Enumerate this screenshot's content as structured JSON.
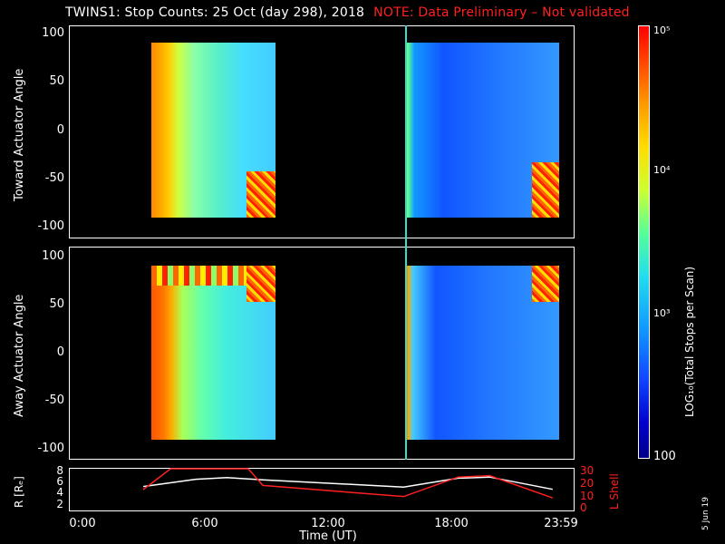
{
  "title": {
    "main": "TWINS1: Stop Counts: 25 Oct (day 298), 2018",
    "note": "NOTE: Data Preliminary – Not validated"
  },
  "panels": {
    "top": {
      "ylabel": "Toward Actuator Angle",
      "yticks": [
        "100",
        "50",
        "0",
        "-50",
        "-100"
      ]
    },
    "middle": {
      "ylabel": "Away Actuator Angle",
      "yticks": [
        "100",
        "50",
        "0",
        "-50",
        "-100"
      ]
    },
    "bottom": {
      "ylabel_left": "R [Rₑ]",
      "ylabel_right": "L Shell",
      "yticks_left": [
        "8",
        "6",
        "4",
        "2"
      ],
      "yticks_right": [
        "30",
        "20",
        "10",
        "0"
      ]
    }
  },
  "xaxis": {
    "label": "Time (UT)",
    "ticks": [
      "0:00",
      "6:00",
      "12:00",
      "18:00",
      "23:59"
    ]
  },
  "colorbar": {
    "title": "LOG₁₀(Total Stops per Scan)",
    "labels": [
      "10⁵",
      "10⁴",
      "10³",
      "100"
    ]
  },
  "date_stamp": "5 Jun 19",
  "colors": {
    "note": "#ff2020",
    "L_shell": "#ff2020",
    "R": "#ffffff",
    "marker_line": "#33ddcc"
  },
  "chart_data": [
    {
      "type": "heatmap",
      "panel": "top",
      "ylabel": "Toward Actuator Angle",
      "ylim": [
        -110,
        110
      ],
      "xlim_hours": [
        0,
        24
      ],
      "data_blocks_hours": [
        [
          3.5,
          9.2
        ],
        [
          15.9,
          23.0
        ]
      ],
      "colorscale": "log10 counts, 100 to 1e5"
    },
    {
      "type": "heatmap",
      "panel": "middle",
      "ylabel": "Away Actuator Angle",
      "ylim": [
        -110,
        110
      ],
      "xlim_hours": [
        0,
        24
      ],
      "data_blocks_hours": [
        [
          3.5,
          9.2
        ],
        [
          15.9,
          23.0
        ]
      ],
      "colorscale": "log10 counts, 100 to 1e5"
    },
    {
      "type": "line",
      "panel": "bottom",
      "series": [
        {
          "name": "R [Rₑ]",
          "axis": "left",
          "x": [
            3.5,
            6.0,
            7.5,
            9.2,
            15.9,
            18.5,
            20.0,
            23.0
          ],
          "y": [
            5.3,
            6.6,
            6.9,
            6.5,
            5.2,
            6.8,
            7.0,
            4.8
          ]
        },
        {
          "name": "L Shell",
          "axis": "right",
          "x": [
            3.5,
            4.8,
            8.5,
            9.2,
            15.9,
            18.5,
            20.0,
            23.0
          ],
          "y": [
            15,
            30,
            30,
            18,
            10,
            24,
            25,
            9
          ]
        }
      ],
      "ylim_left": [
        1,
        8.5
      ],
      "ylim_right": [
        0,
        30
      ]
    }
  ]
}
